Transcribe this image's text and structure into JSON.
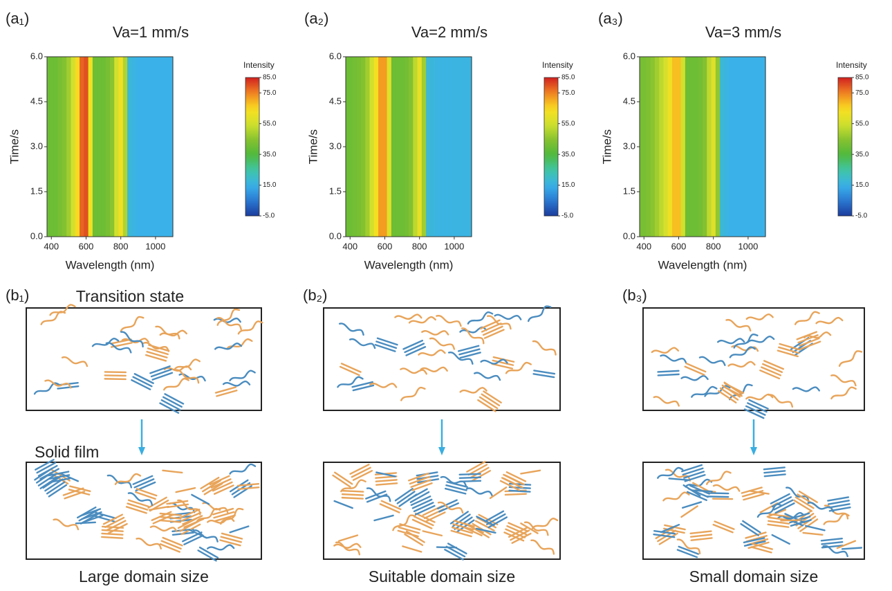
{
  "chart_data": [
    {
      "type": "heatmap",
      "panel": "(a₁)",
      "title": "Va=1 mm/s",
      "x_label": "Wavelength (nm)",
      "y_label": "Time/s",
      "xlim": [
        375,
        1100
      ],
      "xticks": [
        400,
        600,
        800,
        1000
      ],
      "ylim": [
        0,
        6
      ],
      "yticks": [
        {
          "value": 0,
          "label": "0.0"
        },
        {
          "value": 1.5,
          "label": "1.5"
        },
        {
          "value": 3,
          "label": "3.0"
        },
        {
          "value": 4.5,
          "label": "4.5"
        },
        {
          "value": 6,
          "label": "6.0"
        }
      ],
      "x": [
        375,
        400,
        425,
        450,
        475,
        500,
        525,
        550,
        575,
        600,
        625,
        650,
        675,
        700,
        725,
        750,
        775,
        800,
        825,
        850,
        875,
        900,
        925,
        950,
        975,
        1000,
        1025,
        1050,
        1075,
        1100
      ],
      "values": [
        40,
        40,
        40,
        42,
        44,
        48,
        55,
        65,
        78,
        80,
        62,
        40,
        40,
        40,
        42,
        45,
        55,
        62,
        50,
        18,
        16,
        15,
        15,
        15,
        15,
        15,
        15,
        15,
        15,
        15
      ],
      "colorbar": {
        "label": "Intensity",
        "lim": [
          -5,
          85
        ],
        "ticks": [
          {
            "value": -5,
            "label": "-5.0"
          },
          {
            "value": 15,
            "label": "15.0"
          },
          {
            "value": 35,
            "label": "35.0"
          },
          {
            "value": 55,
            "label": "55.0"
          },
          {
            "value": 75,
            "label": "75.0"
          },
          {
            "value": 85,
            "label": "85.0"
          }
        ]
      }
    },
    {
      "type": "heatmap",
      "panel": "(a₂)",
      "title": "Va=2 mm/s",
      "x_label": "Wavelength (nm)",
      "y_label": "Time/s",
      "xlim": [
        375,
        1100
      ],
      "xticks": [
        400,
        600,
        800,
        1000
      ],
      "ylim": [
        0,
        6
      ],
      "yticks": [
        {
          "value": 0,
          "label": "0.0"
        },
        {
          "value": 1.5,
          "label": "1.5"
        },
        {
          "value": 3,
          "label": "3.0"
        },
        {
          "value": 4.5,
          "label": "4.5"
        },
        {
          "value": 6,
          "label": "6.0"
        }
      ],
      "x": [
        375,
        400,
        425,
        450,
        475,
        500,
        525,
        550,
        575,
        600,
        625,
        650,
        675,
        700,
        725,
        750,
        775,
        800,
        825,
        850,
        875,
        900,
        925,
        950,
        975,
        1000,
        1025,
        1050,
        1075,
        1100
      ],
      "values": [
        40,
        40,
        41,
        42,
        44,
        48,
        55,
        63,
        72,
        72,
        58,
        40,
        40,
        40,
        41,
        44,
        52,
        60,
        48,
        18,
        17,
        16,
        16,
        16,
        16,
        16,
        16,
        16,
        16,
        16
      ],
      "colorbar": {
        "label": "Intensity",
        "lim": [
          -5,
          85
        ],
        "ticks": [
          {
            "value": -5,
            "label": "-5.0"
          },
          {
            "value": 15,
            "label": "15.0"
          },
          {
            "value": 35,
            "label": "35.0"
          },
          {
            "value": 55,
            "label": "55.0"
          },
          {
            "value": 75,
            "label": "75.0"
          },
          {
            "value": 85,
            "label": "85.0"
          }
        ]
      }
    },
    {
      "type": "heatmap",
      "panel": "(a₃)",
      "title": "Va=3  mm/s",
      "x_label": "Wavelength (nm)",
      "y_label": "Time/s",
      "xlim": [
        375,
        1100
      ],
      "xticks": [
        400,
        600,
        800,
        1000
      ],
      "ylim": [
        0,
        6
      ],
      "yticks": [
        {
          "value": 0,
          "label": "0.0"
        },
        {
          "value": 1.5,
          "label": "1.5"
        },
        {
          "value": 3,
          "label": "3.0"
        },
        {
          "value": 4.5,
          "label": "4.5"
        },
        {
          "value": 6,
          "label": "6.0"
        }
      ],
      "x": [
        375,
        400,
        425,
        450,
        475,
        500,
        525,
        550,
        575,
        600,
        625,
        650,
        675,
        700,
        725,
        750,
        775,
        800,
        825,
        850,
        875,
        900,
        925,
        950,
        975,
        1000,
        1025,
        1050,
        1075,
        1100
      ],
      "values": [
        42,
        42,
        43,
        45,
        48,
        52,
        56,
        62,
        68,
        68,
        55,
        40,
        40,
        40,
        41,
        44,
        52,
        58,
        46,
        18,
        16,
        15,
        15,
        15,
        15,
        15,
        15,
        15,
        15,
        15
      ],
      "colorbar": {
        "label": "Intensity",
        "lim": [
          -5,
          85
        ],
        "ticks": [
          {
            "value": -5,
            "label": "-5.0"
          },
          {
            "value": 15,
            "label": "15.0"
          },
          {
            "value": 35,
            "label": "35.0"
          },
          {
            "value": 55,
            "label": "55.0"
          },
          {
            "value": 75,
            "label": "75.0"
          },
          {
            "value": 85,
            "label": "85.0"
          }
        ]
      }
    }
  ],
  "schematics": [
    {
      "panel": "(b₁)",
      "top_label": "Transition state",
      "middle_label": "Solid film",
      "caption": "Large domain size"
    },
    {
      "panel": "(b₂)",
      "caption": "Suitable domain size"
    },
    {
      "panel": "(b₃)",
      "caption": "Small domain size"
    }
  ]
}
